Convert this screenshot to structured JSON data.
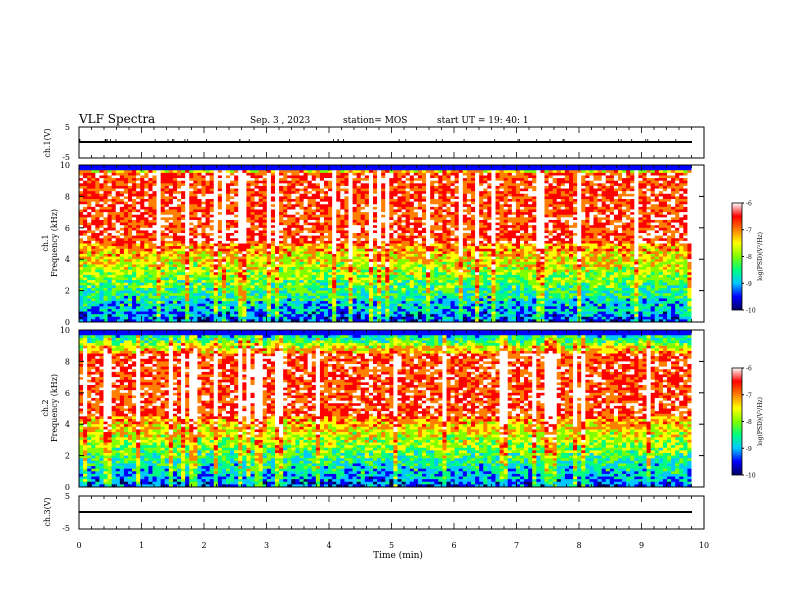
{
  "header": {
    "title": "VLF Spectra",
    "date": "Sep. 3 , 2023",
    "station": "station= MOS",
    "start": "start UT = 19: 40: 1"
  },
  "chart_data": [
    {
      "type": "line",
      "panel": "ch1-waveform",
      "ylabel": "ch.1(V)",
      "ylim": [
        -5,
        5
      ],
      "y_ticks": [
        "5",
        "-5"
      ],
      "series": [
        {
          "x": [
            0,
            9.8
          ],
          "y": [
            0,
            0
          ]
        }
      ]
    },
    {
      "type": "heatmap",
      "panel": "ch1-spectrogram",
      "ylabel": "ch.1\nFrequency (kHz)",
      "ylim": [
        0,
        10
      ],
      "y_ticks": [
        "0",
        "2",
        "4",
        "6",
        "8",
        "10"
      ],
      "x_range_min": [
        0,
        9.8
      ],
      "dominant_band_khz": [
        5,
        9.5
      ],
      "colorbar": {
        "label": "log(PSD)(V²/Hz)",
        "range": [
          -10,
          -6
        ],
        "ticks": [
          "-6",
          "-7",
          "-8",
          "-9",
          "-10"
        ],
        "colormap": [
          "#000060",
          "#0000ff",
          "#00c8ff",
          "#00ff80",
          "#80ff00",
          "#ffff00",
          "#ff8000",
          "#ff0000",
          "#ffffff"
        ]
      }
    },
    {
      "type": "heatmap",
      "panel": "ch2-spectrogram",
      "ylabel": "ch.2\nFrequency (kHz)",
      "ylim": [
        0,
        10
      ],
      "y_ticks": [
        "0",
        "2",
        "4",
        "6",
        "8",
        "10"
      ],
      "x_range_min": [
        0,
        9.8
      ],
      "dominant_band_khz": [
        4.5,
        8.5
      ],
      "colorbar": {
        "label": "log(PSD)(V²/Hz)",
        "range": [
          -10,
          -6
        ],
        "ticks": [
          "-6",
          "-7",
          "-8",
          "-9",
          "-10"
        ],
        "colormap": [
          "#000060",
          "#0000ff",
          "#00c8ff",
          "#00ff80",
          "#80ff00",
          "#ffff00",
          "#ff8000",
          "#ff0000",
          "#ffffff"
        ]
      }
    },
    {
      "type": "line",
      "panel": "ch3-waveform",
      "ylabel": "ch.3(V)",
      "ylim": [
        -5,
        5
      ],
      "y_ticks": [
        "5",
        "-5"
      ],
      "xlabel": "Time (min)",
      "xlim": [
        0,
        10
      ],
      "x_ticks": [
        "0",
        "1",
        "2",
        "3",
        "4",
        "5",
        "6",
        "7",
        "8",
        "9",
        "10"
      ],
      "series": [
        {
          "x": [
            0,
            9.8
          ],
          "y": [
            0,
            0
          ]
        }
      ]
    }
  ]
}
